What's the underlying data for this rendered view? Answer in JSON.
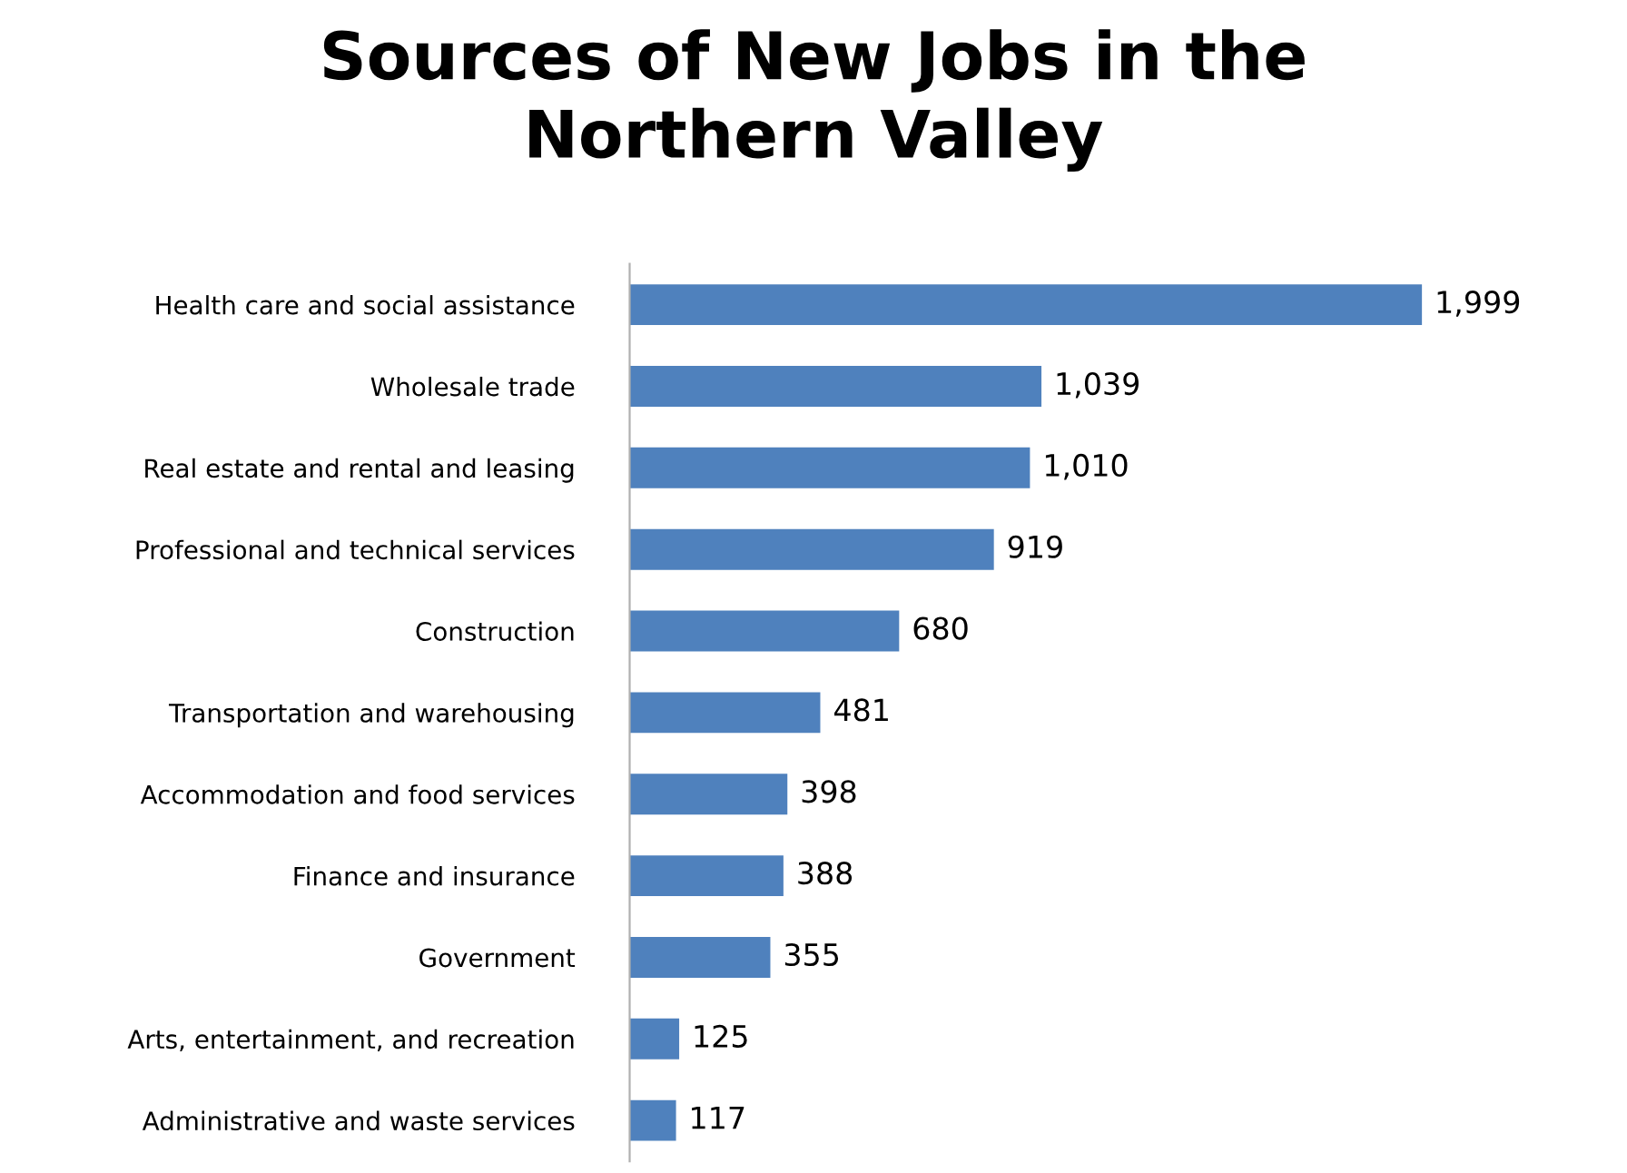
{
  "chart_data": {
    "type": "bar",
    "orientation": "horizontal",
    "title": "Sources of New Jobs in the\nNorthern Valley",
    "categories": [
      "Health care and social assistance",
      "Wholesale trade",
      "Real estate and rental and leasing",
      "Professional and technical services",
      "Construction",
      "Transportation and warehousing",
      "Accommodation and food services",
      "Finance and insurance",
      "Government",
      "Arts, entertainment, and recreation",
      "Administrative and waste services"
    ],
    "values": [
      1999,
      1039,
      1010,
      919,
      680,
      481,
      398,
      388,
      355,
      125,
      117
    ],
    "value_labels": [
      "1,999",
      "1,039",
      "1,010",
      "919",
      "680",
      "481",
      "398",
      "388",
      "355",
      "125",
      "117"
    ],
    "color": "#4f81bd",
    "grid": false,
    "legend": false,
    "tick_labels": "y"
  }
}
